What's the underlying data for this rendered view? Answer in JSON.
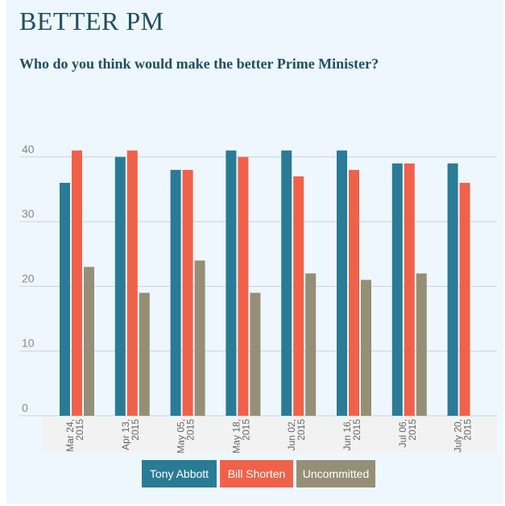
{
  "header": {
    "title": "BETTER PM",
    "subtitle": "Who do you think would make the better Prime Minister?"
  },
  "chart_data": {
    "type": "bar",
    "categories": [
      [
        "Mar 24,",
        "2015"
      ],
      [
        "Apr 13,",
        "2015"
      ],
      [
        "May 05,",
        "2015"
      ],
      [
        "May 18,",
        "2015"
      ],
      [
        "Jun 02,",
        "2015"
      ],
      [
        "Jun 16,",
        "2015"
      ],
      [
        "Jul 06,",
        "2015"
      ],
      [
        "July 20,",
        "2015"
      ]
    ],
    "series": [
      {
        "name": "Tony Abbott",
        "color": "#2a7b96",
        "values": [
          36,
          40,
          38,
          41,
          41,
          41,
          39,
          39
        ]
      },
      {
        "name": "Bill Shorten",
        "color": "#f0614a",
        "values": [
          41,
          41,
          38,
          40,
          37,
          38,
          39,
          36
        ]
      },
      {
        "name": "Uncommitted",
        "color": "#948f76",
        "values": [
          23,
          19,
          24,
          19,
          22,
          21,
          22,
          null
        ]
      }
    ],
    "yticks": [
      0,
      10,
      20,
      30,
      40
    ],
    "ylim": [
      0,
      48
    ],
    "grid": true,
    "legend_position": "bottom"
  },
  "colors": {
    "background": "#eef7fd",
    "title": "#1f4e63",
    "grid": "#c8d3d9",
    "axis_band": "#f2f2f2"
  }
}
